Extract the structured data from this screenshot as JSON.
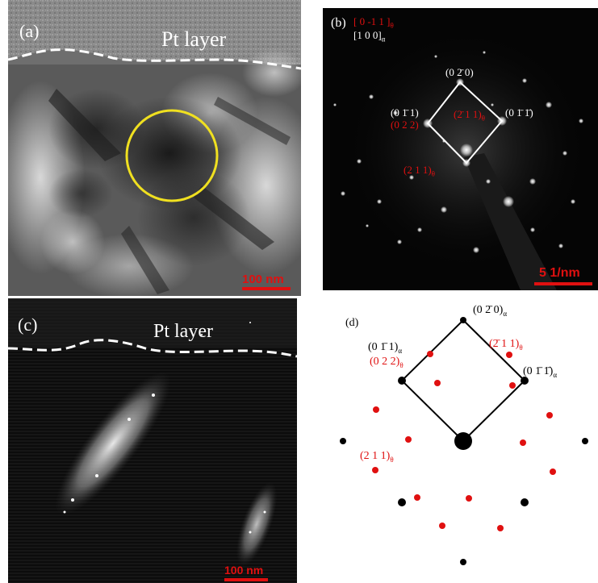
{
  "figure": {
    "panel_a": {
      "label": "(a)",
      "layer_label": "Pt layer",
      "scale_bar": "100 nm"
    },
    "panel_b": {
      "label": "(b)",
      "zone_theta": "[ 0 -1 1 ]",
      "zone_theta_sub": "θ",
      "zone_alpha": "[1 0 0]",
      "zone_alpha_sub": "α",
      "spots": {
        "s020": "(0 2̄ 0)",
        "s011": "(0 1̄ 1)",
        "s022": "(0 2 2)",
        "s211bar": "(2̄ 1 1)",
        "s011bar": "(0 1̄ 1̄)",
        "s211": "(2 1 1)",
        "theta_sub": "θ"
      },
      "scale_bar": "5 1/nm"
    },
    "panel_c": {
      "label": "(c)",
      "layer_label": "Pt layer",
      "scale_bar": "100 nm"
    },
    "panel_d": {
      "label": "(d)",
      "spots": {
        "s020": "(0 2̄ 0)",
        "s011": "(0 1̄ 1)",
        "s022": "(0 2 2)",
        "s211bar": "(2̄ 1 1)",
        "s011bar": "(0 1̄ 1̄)",
        "s211": "(2 1 1)",
        "alpha_sub": "α",
        "theta_sub": "θ"
      }
    },
    "colors": {
      "annotation_red": "#e01010",
      "circle_yellow": "#f0e020",
      "alpha_spot": "#000000",
      "theta_spot": "#e01010"
    }
  }
}
